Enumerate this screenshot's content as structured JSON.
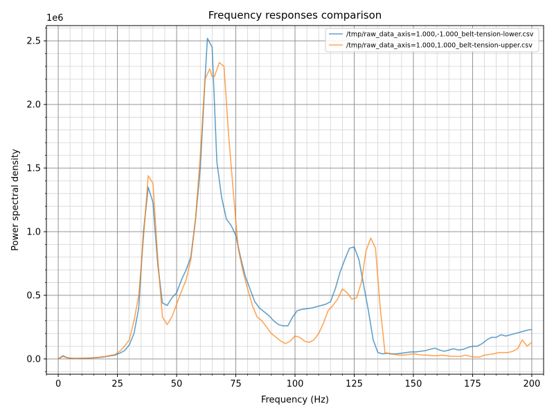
{
  "chart_data": {
    "type": "line",
    "title": "Frequency responses comparison",
    "xlabel": "Frequency (Hz)",
    "ylabel": "Power spectral density",
    "y_offset_label": "1e6",
    "xlim": [
      -5,
      205
    ],
    "ylim": [
      -0.12,
      2.62
    ],
    "x_ticks": [
      0,
      25,
      50,
      75,
      100,
      125,
      150,
      175,
      200
    ],
    "x_tick_labels": [
      "0",
      "25",
      "50",
      "75",
      "100",
      "125",
      "150",
      "175",
      "200"
    ],
    "y_ticks": [
      0,
      0.5,
      1,
      1.5,
      2,
      2.5
    ],
    "y_tick_labels": [
      "0.0",
      "0.5",
      "1.0",
      "1.5",
      "2.0",
      "2.5"
    ],
    "grid": true,
    "minor_grid": true,
    "legend_position": "top-right",
    "series": [
      {
        "name": "/tmp/raw_data_axis=1.000,-1.000_belt-tension-lower.csv",
        "color": "#1f77b4",
        "x": [
          0,
          2,
          4,
          6,
          8,
          10,
          12,
          14,
          16,
          18,
          20,
          22,
          24,
          26,
          28,
          30,
          32,
          34,
          36,
          38,
          40,
          42,
          44,
          46,
          48,
          50,
          52,
          54,
          56,
          58,
          60,
          62,
          63,
          65,
          67,
          69,
          71,
          73,
          75,
          77,
          79,
          81,
          83,
          85,
          87,
          89,
          91,
          93,
          95,
          97,
          99,
          101,
          103,
          105,
          107,
          109,
          111,
          113,
          115,
          117,
          119,
          121,
          123,
          125,
          127,
          129,
          131,
          133,
          135,
          137,
          139,
          141,
          143,
          145,
          147,
          149,
          151,
          153,
          155,
          157,
          159,
          161,
          163,
          165,
          167,
          169,
          171,
          173,
          175,
          177,
          179,
          181,
          183,
          185,
          187,
          189,
          191,
          193,
          195,
          197,
          199,
          200
        ],
        "y": [
          0.0,
          0.025,
          0.008,
          0.005,
          0.004,
          0.005,
          0.006,
          0.007,
          0.01,
          0.013,
          0.018,
          0.024,
          0.03,
          0.045,
          0.065,
          0.11,
          0.2,
          0.4,
          1.0,
          1.35,
          1.23,
          0.75,
          0.44,
          0.42,
          0.48,
          0.52,
          0.62,
          0.7,
          0.8,
          1.1,
          1.5,
          2.2,
          2.52,
          2.45,
          1.55,
          1.27,
          1.1,
          1.05,
          0.97,
          0.8,
          0.65,
          0.55,
          0.45,
          0.4,
          0.37,
          0.34,
          0.3,
          0.27,
          0.26,
          0.26,
          0.33,
          0.38,
          0.39,
          0.395,
          0.4,
          0.41,
          0.42,
          0.43,
          0.45,
          0.55,
          0.68,
          0.78,
          0.87,
          0.88,
          0.78,
          0.58,
          0.38,
          0.15,
          0.05,
          0.04,
          0.045,
          0.04,
          0.04,
          0.045,
          0.05,
          0.055,
          0.055,
          0.06,
          0.065,
          0.075,
          0.085,
          0.07,
          0.06,
          0.07,
          0.08,
          0.07,
          0.075,
          0.09,
          0.1,
          0.1,
          0.12,
          0.15,
          0.17,
          0.17,
          0.19,
          0.18,
          0.19,
          0.2,
          0.21,
          0.22,
          0.23,
          0.23
        ]
      },
      {
        "name": "/tmp/raw_data_axis=1.000,1.000_belt-tension-upper.csv",
        "color": "#ff7f0e",
        "x": [
          0,
          2,
          4,
          6,
          8,
          10,
          12,
          14,
          16,
          18,
          20,
          22,
          24,
          26,
          28,
          30,
          32,
          34,
          36,
          38,
          40,
          42,
          44,
          46,
          48,
          50,
          52,
          54,
          56,
          58,
          60,
          62,
          64,
          65,
          66,
          68,
          70,
          72,
          74,
          76,
          78,
          80,
          82,
          84,
          86,
          88,
          90,
          92,
          94,
          96,
          98,
          100,
          102,
          104,
          106,
          108,
          110,
          112,
          114,
          116,
          118,
          120,
          122,
          124,
          126,
          128,
          130,
          132,
          134,
          136,
          138,
          140,
          142,
          144,
          146,
          148,
          150,
          152,
          154,
          156,
          158,
          160,
          162,
          164,
          166,
          168,
          170,
          172,
          174,
          176,
          178,
          180,
          182,
          184,
          186,
          188,
          190,
          192,
          194,
          196,
          198,
          200
        ],
        "y": [
          0.0,
          0.02,
          0.008,
          0.005,
          0.004,
          0.005,
          0.006,
          0.008,
          0.011,
          0.015,
          0.02,
          0.027,
          0.035,
          0.06,
          0.1,
          0.15,
          0.3,
          0.5,
          0.95,
          1.44,
          1.38,
          0.8,
          0.33,
          0.27,
          0.33,
          0.43,
          0.53,
          0.62,
          0.78,
          1.1,
          1.6,
          2.2,
          2.28,
          2.22,
          2.22,
          2.33,
          2.3,
          1.75,
          1.3,
          0.87,
          0.69,
          0.55,
          0.42,
          0.33,
          0.3,
          0.25,
          0.2,
          0.17,
          0.14,
          0.12,
          0.14,
          0.18,
          0.17,
          0.14,
          0.13,
          0.15,
          0.2,
          0.28,
          0.38,
          0.42,
          0.47,
          0.55,
          0.52,
          0.47,
          0.48,
          0.6,
          0.85,
          0.95,
          0.87,
          0.4,
          0.05,
          0.04,
          0.035,
          0.03,
          0.03,
          0.035,
          0.04,
          0.035,
          0.03,
          0.03,
          0.025,
          0.025,
          0.03,
          0.025,
          0.02,
          0.02,
          0.02,
          0.03,
          0.02,
          0.015,
          0.015,
          0.03,
          0.035,
          0.04,
          0.05,
          0.05,
          0.05,
          0.06,
          0.08,
          0.15,
          0.1,
          0.13
        ]
      }
    ]
  }
}
